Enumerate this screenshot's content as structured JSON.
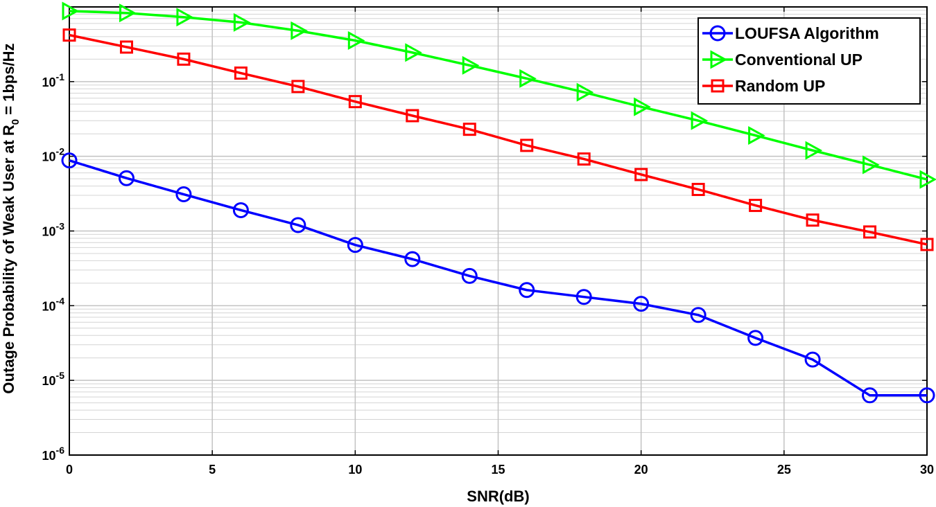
{
  "chart_data": {
    "type": "line",
    "title": "",
    "xlabel": "SNR(dB)",
    "ylabel_parts": [
      "Outage Probability of Weak User at R",
      "0",
      " = 1bps/Hz"
    ],
    "xlim": [
      0,
      30
    ],
    "ylim": [
      1e-06,
      1
    ],
    "yscale": "log",
    "grid": true,
    "x_ticks": [
      "0",
      "5",
      "10",
      "15",
      "20",
      "25",
      "30"
    ],
    "y_ticks": [
      {
        "base": "10",
        "exp": "-6"
      },
      {
        "base": "10",
        "exp": "-5"
      },
      {
        "base": "10",
        "exp": "-4"
      },
      {
        "base": "10",
        "exp": "-3"
      },
      {
        "base": "10",
        "exp": "-2"
      },
      {
        "base": "10",
        "exp": "-1"
      }
    ],
    "legend_position": "top-right",
    "x": [
      0,
      2,
      4,
      6,
      8,
      10,
      12,
      14,
      16,
      18,
      20,
      22,
      24,
      26,
      28,
      30
    ],
    "series": [
      {
        "name": "LOUFSA Algorithm",
        "color": "#0000ff",
        "marker": "circle",
        "values": [
          0.0088,
          0.0051,
          0.0031,
          0.0019,
          0.0012,
          0.00065,
          0.00042,
          0.00025,
          0.000162,
          0.000131,
          0.000106,
          7.5e-05,
          3.7e-05,
          1.9e-05,
          6.3e-06,
          6.3e-06
        ]
      },
      {
        "name": "Conventional UP",
        "color": "#00ff00",
        "marker": "triangle-right",
        "values": [
          0.88,
          0.83,
          0.73,
          0.62,
          0.48,
          0.355,
          0.245,
          0.165,
          0.11,
          0.072,
          0.046,
          0.03,
          0.019,
          0.012,
          0.0077,
          0.0049
        ]
      },
      {
        "name": "Random UP",
        "color": "#ff0000",
        "marker": "square",
        "values": [
          0.42,
          0.29,
          0.2,
          0.13,
          0.086,
          0.054,
          0.035,
          0.023,
          0.014,
          0.0092,
          0.0057,
          0.0036,
          0.0022,
          0.0014,
          0.00097,
          0.00066
        ]
      }
    ]
  }
}
